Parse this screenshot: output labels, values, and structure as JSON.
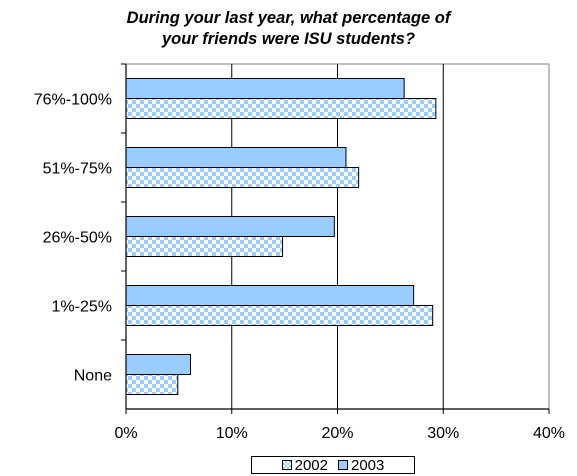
{
  "chart_data": {
    "type": "bar",
    "orientation": "horizontal",
    "title_lines": [
      "During your last year, what percentage of",
      "your friends were ISU students?"
    ],
    "categories": [
      "76%-100%",
      "51%-75%",
      "26%-50%",
      "1%-25%",
      "None"
    ],
    "series": [
      {
        "name": "2003",
        "values": [
          26.3,
          20.8,
          19.7,
          27.2,
          6.1
        ],
        "color": "#99ccff",
        "pattern": "solid"
      },
      {
        "name": "2002",
        "values": [
          29.3,
          22.0,
          14.8,
          29.0,
          4.9
        ],
        "color": "#99ccff",
        "pattern": "checker"
      }
    ],
    "xlim": [
      0,
      40
    ],
    "x_ticks": [
      "0%",
      "10%",
      "20%",
      "30%",
      "40%"
    ],
    "grid": true,
    "legend": {
      "position": "bottom",
      "entries": [
        "2002",
        "2003"
      ]
    }
  }
}
